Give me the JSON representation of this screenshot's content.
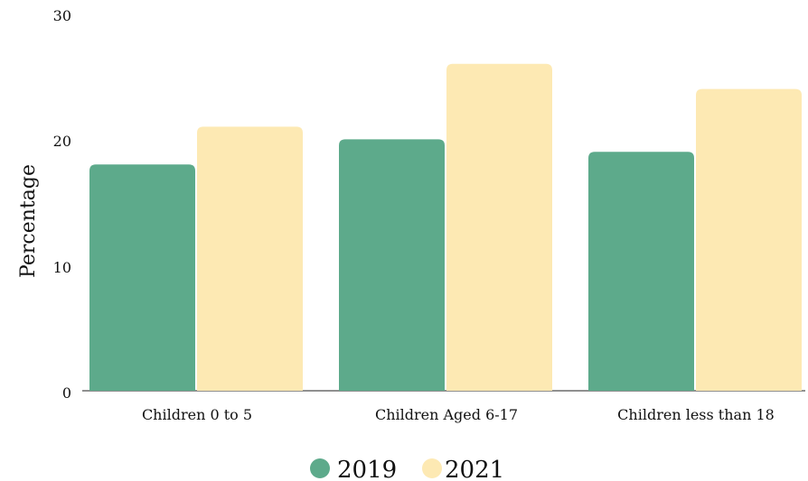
{
  "chart_data": {
    "type": "bar",
    "title": "",
    "xlabel": "",
    "ylabel": "Percentage",
    "categories": [
      "Children 0 to 5",
      "Children Aged 6-17",
      "Children less than 18"
    ],
    "series": [
      {
        "name": "2019",
        "values": [
          18,
          20,
          19
        ],
        "color": "#5daa8b"
      },
      {
        "name": "2021",
        "values": [
          21,
          26,
          24
        ],
        "color": "#fde9b3"
      }
    ],
    "ylim": [
      0,
      30
    ],
    "yticks": [
      "0",
      "10",
      "20",
      "30"
    ],
    "grid": false,
    "legend": "bottom-center"
  }
}
